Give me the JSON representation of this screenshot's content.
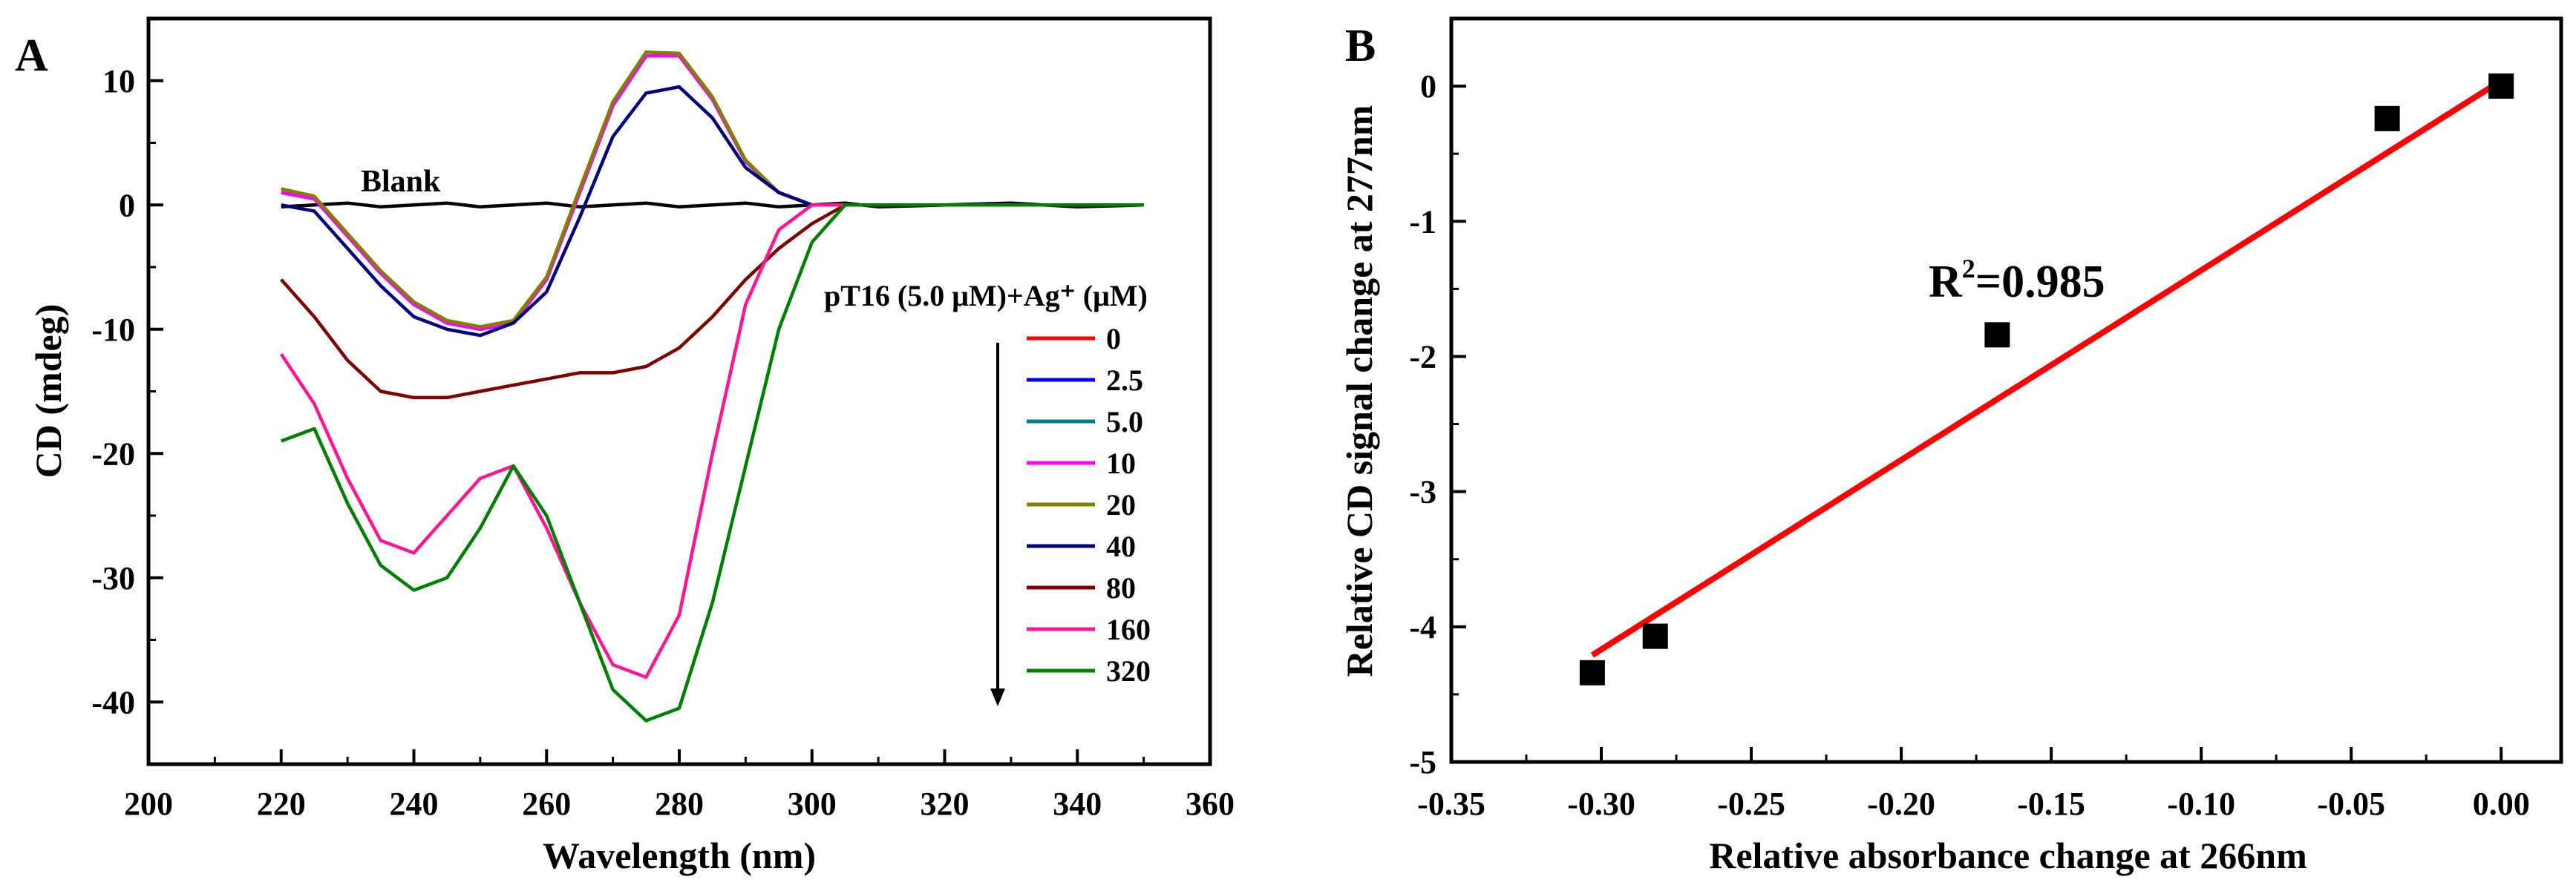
{
  "chart_data": [
    {
      "type": "line",
      "panel_label": "A",
      "title": "",
      "xlabel": "Wavelength (nm)",
      "ylabel": "CD (mdeg)",
      "xlim": [
        200,
        360
      ],
      "ylim": [
        -45,
        15
      ],
      "xticks": [
        200,
        220,
        240,
        260,
        280,
        300,
        320,
        340,
        360
      ],
      "yticks": [
        -40,
        -30,
        -20,
        -10,
        0,
        10
      ],
      "xtick_labels": [
        "200",
        "220",
        "240",
        "260",
        "280",
        "300",
        "320",
        "340",
        "360"
      ],
      "ytick_labels": [
        "-40",
        "-30",
        "-20",
        "-10",
        "0",
        "10"
      ],
      "annotation": "Blank",
      "legend_title": "pT16 (5.0 μM)+Ag⁺ (μM)",
      "legend_position": "right",
      "x": [
        220,
        225,
        230,
        235,
        240,
        245,
        250,
        255,
        260,
        265,
        270,
        275,
        280,
        285,
        290,
        295,
        300,
        305,
        310,
        320,
        330,
        340,
        350
      ],
      "series": [
        {
          "name": "Blank",
          "color": "#000000",
          "values": [
            0,
            0,
            0,
            0,
            0,
            0,
            0,
            0,
            0,
            0,
            0,
            0,
            0,
            0,
            0,
            0,
            0,
            0,
            0,
            0,
            0,
            0,
            0
          ]
        },
        {
          "name": "0",
          "color": "#ff0000",
          "values": [
            1,
            0.5,
            -2.5,
            -5.5,
            -8,
            -9.5,
            -10,
            -9.5,
            -6,
            1,
            8,
            12,
            12,
            8.5,
            3.5,
            1,
            0,
            0,
            0,
            0,
            0,
            0,
            0
          ]
        },
        {
          "name": "2.5",
          "color": "#0000ff",
          "values": [
            1,
            0.5,
            -2.5,
            -5.5,
            -8,
            -9.5,
            -10,
            -9.5,
            -6,
            1,
            8,
            12,
            12,
            8.5,
            3.5,
            1,
            0,
            0,
            0,
            0,
            0,
            0,
            0
          ]
        },
        {
          "name": "5.0",
          "color": "#008080",
          "values": [
            1,
            0.5,
            -2.5,
            -5.5,
            -8,
            -9.5,
            -10,
            -9.5,
            -6,
            1,
            8,
            12,
            12,
            8.5,
            3.5,
            1,
            0,
            0,
            0,
            0,
            0,
            0,
            0
          ]
        },
        {
          "name": "10",
          "color": "#ff00ff",
          "values": [
            1,
            0.5,
            -2.5,
            -5.5,
            -8,
            -9.5,
            -10,
            -9.5,
            -6,
            1,
            8,
            12,
            12,
            8.5,
            3.5,
            1,
            0,
            0,
            0,
            0,
            0,
            0,
            0
          ]
        },
        {
          "name": "20",
          "color": "#808000",
          "values": [
            1.3,
            0.7,
            -2.3,
            -5.3,
            -7.8,
            -9.3,
            -9.8,
            -9.3,
            -5.8,
            1.3,
            8.3,
            12.3,
            12.2,
            8.7,
            3.6,
            1,
            0,
            0,
            0,
            0,
            0,
            0,
            0
          ]
        },
        {
          "name": "40",
          "color": "#000080",
          "values": [
            0,
            -0.5,
            -3.5,
            -6.5,
            -9,
            -10,
            -10.5,
            -9.5,
            -7,
            -1,
            5.5,
            9,
            9.5,
            7,
            3,
            1,
            0,
            0,
            0,
            0,
            0,
            0,
            0
          ]
        },
        {
          "name": "80",
          "color": "#800000",
          "values": [
            -6,
            -9,
            -12.5,
            -15,
            -15.5,
            -15.5,
            -15,
            -14.5,
            -14,
            -13.5,
            -13.5,
            -13,
            -11.5,
            -9,
            -6,
            -3.5,
            -1.5,
            0,
            0,
            0,
            0,
            0,
            0
          ]
        },
        {
          "name": "160",
          "color": "#ff1493",
          "values": [
            -12,
            -16,
            -22,
            -27,
            -28,
            -25,
            -22,
            -21,
            -26,
            -32,
            -37,
            -38,
            -33,
            -20,
            -8,
            -2,
            0,
            0,
            0,
            0,
            0,
            0,
            0
          ]
        },
        {
          "name": "320",
          "color": "#008000",
          "values": [
            -19,
            -18,
            -24,
            -29,
            -31,
            -30,
            -26,
            -21,
            -25,
            -32,
            -39,
            -41.5,
            -40.5,
            -32,
            -21,
            -10,
            -3,
            0,
            0,
            0,
            0,
            0,
            0
          ]
        }
      ]
    },
    {
      "type": "scatter",
      "panel_label": "B",
      "title": "",
      "xlabel": "Relative absorbance change at 266nm",
      "ylabel": "Relative CD signal change at 277nm",
      "xlim": [
        -0.35,
        0.02
      ],
      "ylim": [
        -5,
        0.5
      ],
      "xticks": [
        -0.35,
        -0.3,
        -0.25,
        -0.2,
        -0.15,
        -0.1,
        -0.05,
        0.0
      ],
      "yticks": [
        -5,
        -4,
        -3,
        -2,
        -1,
        0
      ],
      "xtick_labels": [
        "-0.35",
        "-0.30",
        "-0.25",
        "-0.20",
        "-0.15",
        "-0.10",
        "-0.05",
        "0.00"
      ],
      "ytick_labels": [
        "-5",
        "-4",
        "-3",
        "-2",
        "-1",
        "0"
      ],
      "annotation_base": "R",
      "annotation_sup": "2",
      "annotation_value": "=0.985",
      "points": {
        "x": [
          -0.303,
          -0.282,
          -0.168,
          -0.038,
          0.0
        ],
        "y": [
          -4.34,
          -4.07,
          -1.84,
          -0.24,
          0.0
        ],
        "color": "#000000"
      },
      "fit": {
        "x": [
          -0.303,
          0.0
        ],
        "y": [
          -4.21,
          0.04
        ],
        "color": "#ff0000",
        "r2": 0.985
      }
    }
  ]
}
